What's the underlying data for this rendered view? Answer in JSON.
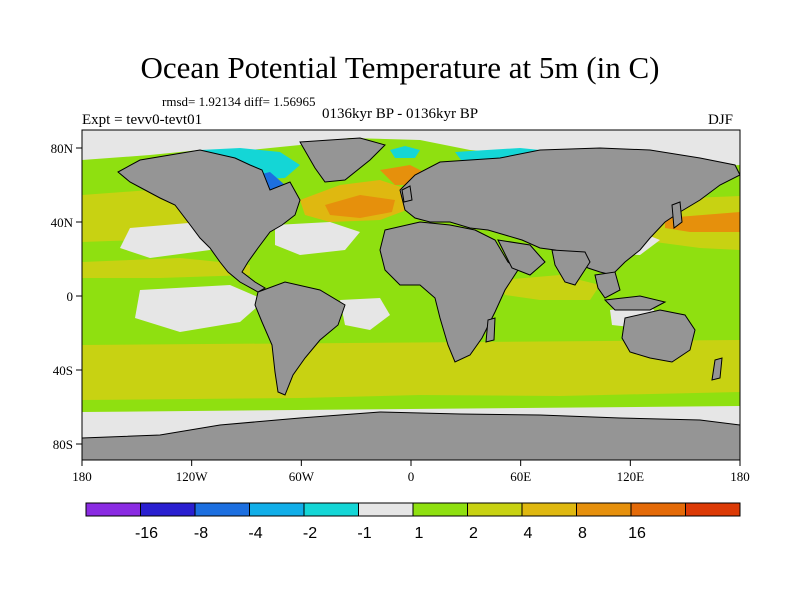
{
  "title": "Ocean Potential Temperature at 5m (in C)",
  "stats": "rmsd= 1.92134 diff= 1.56965",
  "experiment": "Expt = tevv0-tevt01",
  "period": "0136kyr BP - 0136kyr BP",
  "season": "DJF",
  "colors": {
    "land": "#959595",
    "plot_frame": "#000000"
  },
  "map": {
    "x_ticks": [
      "180",
      "120W",
      "60W",
      "0",
      "60E",
      "120E",
      "180"
    ],
    "y_ticks": [
      "80N",
      "40N",
      "0",
      "40S",
      "80S"
    ]
  },
  "colorbar": {
    "colors": [
      "#8a2be2",
      "#2a1fd0",
      "#1c6fe0",
      "#11aee8",
      "#14d6d6",
      "#e6e6e6",
      "#8fe010",
      "#c8d212",
      "#dfb810",
      "#e6900c",
      "#e46a08",
      "#dc3a06"
    ],
    "labels": [
      "-16",
      "-8",
      "-4",
      "-2",
      "-1",
      "1",
      "2",
      "4",
      "8",
      "16"
    ]
  }
}
